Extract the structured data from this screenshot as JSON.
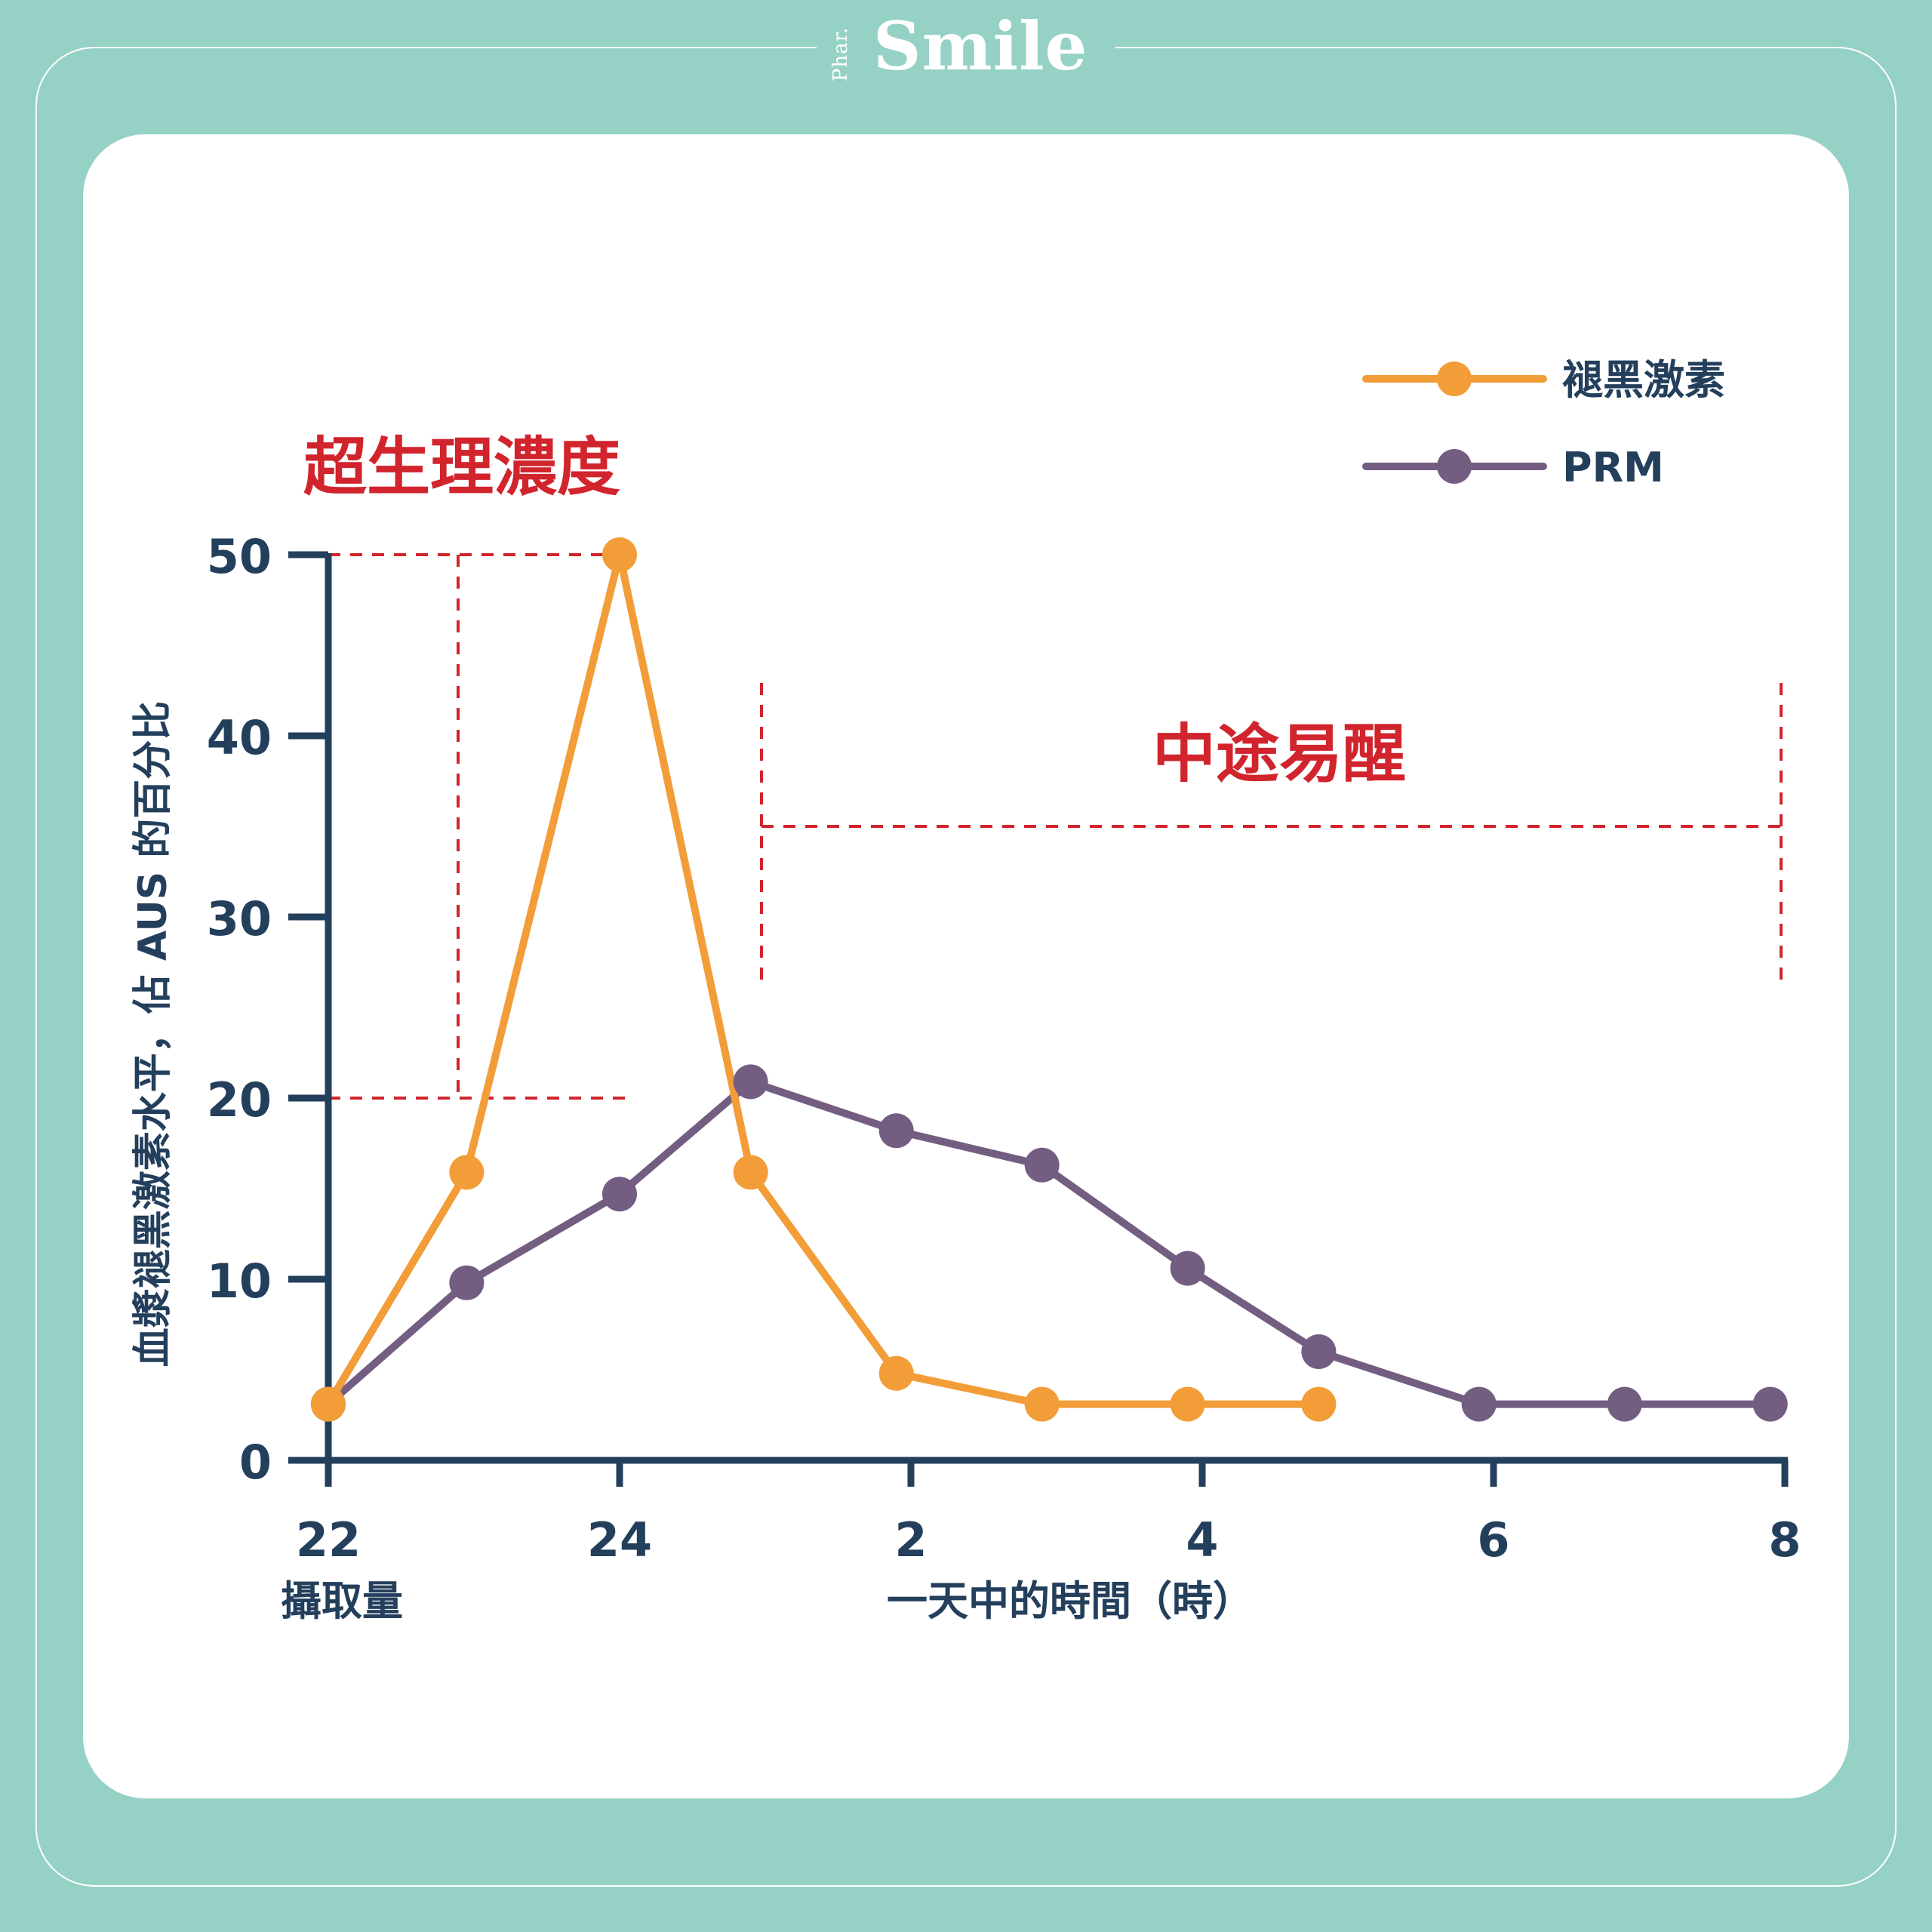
{
  "brand": {
    "prefix": "Phar.",
    "name": "Smile"
  },
  "colors": {
    "background": "#96d1c6",
    "card": "#ffffff",
    "axis": "#233f5c",
    "melatonin": "#f29d38",
    "prm": "#735e82",
    "annotation": "#d1242d"
  },
  "chart_data": {
    "type": "line",
    "ylabel": "血漿褪黑激素水平，佔 AUS 的百分比",
    "xlabel": "一天中的時間（時）",
    "x_intake_label": "攝取量",
    "ylim": [
      0,
      50
    ],
    "yticks": [
      0,
      10,
      20,
      30,
      40,
      50
    ],
    "ytick_labels": [
      "0",
      "10",
      "20",
      "30",
      "40",
      "50"
    ],
    "xlim": [
      22,
      32
    ],
    "xticks": [
      22,
      24,
      26,
      28,
      30,
      32
    ],
    "xtick_labels": [
      "22",
      "24",
      "2",
      "4",
      "6",
      "8"
    ],
    "legend_position": "top-right",
    "series": [
      {
        "name": "褪黑激素",
        "color": "#f29d38",
        "points": [
          [
            22,
            3.1
          ],
          [
            22.95,
            15.9
          ],
          [
            24,
            50
          ],
          [
            24.9,
            15.9
          ],
          [
            25.9,
            4.8
          ],
          [
            26.9,
            3.1
          ],
          [
            27.9,
            3.1
          ],
          [
            28.8,
            3.1
          ]
        ]
      },
      {
        "name": "PRM",
        "color": "#735e82",
        "points": [
          [
            22,
            3.1
          ],
          [
            22.95,
            9.8
          ],
          [
            24,
            14.7
          ],
          [
            24.9,
            20.9
          ],
          [
            25.9,
            18.2
          ],
          [
            26.9,
            16.3
          ],
          [
            27.9,
            10.6
          ],
          [
            28.8,
            6.0
          ],
          [
            29.9,
            3.1
          ],
          [
            30.9,
            3.1
          ],
          [
            31.9,
            3.1
          ]
        ]
      }
    ],
    "annotations": [
      {
        "label": "超生理濃度",
        "y_range": [
          20,
          50
        ],
        "x_range": [
          22,
          24
        ]
      },
      {
        "label": "中途易醒",
        "y": 35,
        "x_range": [
          25,
          32
        ]
      }
    ]
  }
}
